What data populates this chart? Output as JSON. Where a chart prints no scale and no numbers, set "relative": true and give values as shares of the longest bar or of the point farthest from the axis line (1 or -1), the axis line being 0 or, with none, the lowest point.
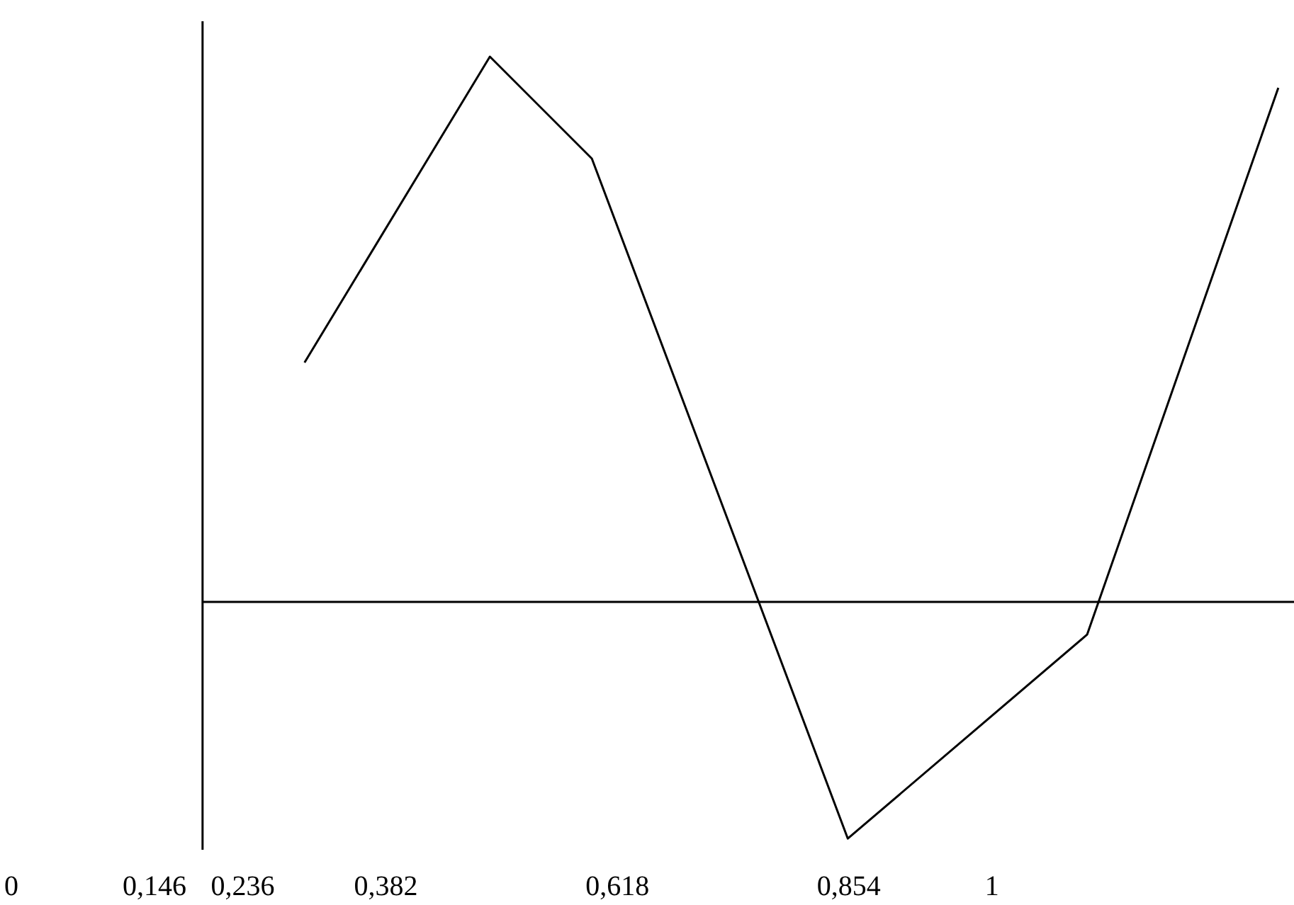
{
  "chart_data": {
    "type": "line",
    "relative": true,
    "x": [
      0.299,
      0.488,
      0.592,
      0.853,
      1.097,
      1.292
    ],
    "values": [
      0.439,
      1,
      0.813,
      -0.434,
      -0.06,
      0.943
    ],
    "color": "#000000",
    "marker": "none",
    "line_style": "solid",
    "grid": false,
    "xlim": [
      0,
      1.308
    ],
    "xticks": [
      0,
      {
        "value": 0.146,
        "label": "0,146"
      },
      {
        "value": 0.236,
        "label": "0,236"
      },
      {
        "value": 0.382,
        "label": "0,382"
      },
      {
        "value": 0.618,
        "label": "0,618"
      },
      {
        "value": 0.854,
        "label": "0,854"
      },
      1
    ],
    "ref_lines": [
      {
        "axis": "x",
        "value": 0.195,
        "label": null,
        "color": "#000000"
      }
    ]
  }
}
